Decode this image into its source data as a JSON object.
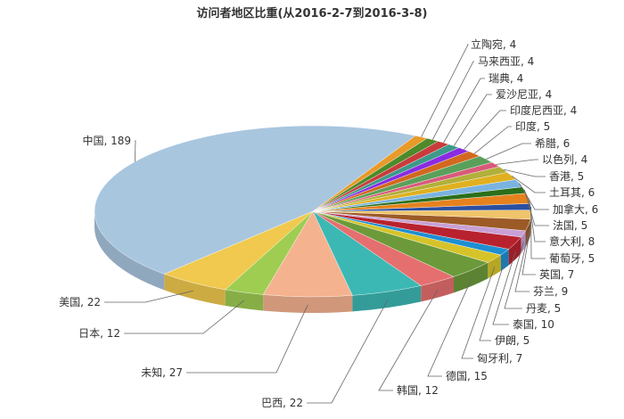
{
  "chart_data": {
    "type": "pie",
    "title": "访问者地区比重(从2016-2-7到2016-3-8)",
    "slices": [
      {
        "label": "中国",
        "value": 189,
        "color": "#a9c6df"
      },
      {
        "label": "美国",
        "value": 22,
        "color": "#f0c94e"
      },
      {
        "label": "日本",
        "value": 12,
        "color": "#9fcd52"
      },
      {
        "label": "未知",
        "value": 27,
        "color": "#f5b28f"
      },
      {
        "label": "巴西",
        "value": 22,
        "color": "#3cb8b4"
      },
      {
        "label": "韩国",
        "value": 12,
        "color": "#e56f6f"
      },
      {
        "label": "德国",
        "value": 15,
        "color": "#6c9a3a"
      },
      {
        "label": "匈牙利",
        "value": 7,
        "color": "#d6c32a"
      },
      {
        "label": "伊朗",
        "value": 5,
        "color": "#1e8fd2"
      },
      {
        "label": "泰国",
        "value": 10,
        "color": "#b8222f"
      },
      {
        "label": "丹麦",
        "value": 5,
        "color": "#c9a0d6"
      },
      {
        "label": "芬兰",
        "value": 9,
        "color": "#9c5a27"
      },
      {
        "label": "英国",
        "value": 7,
        "color": "#f0c46a"
      },
      {
        "label": "葡萄牙",
        "value": 5,
        "color": "#2a4fa0"
      },
      {
        "label": "意大利",
        "value": 8,
        "color": "#e6821e"
      },
      {
        "label": "法国",
        "value": 5,
        "color": "#2b6f1a"
      },
      {
        "label": "加拿大",
        "value": 6,
        "color": "#7ab3e0"
      },
      {
        "label": "土耳其",
        "value": 6,
        "color": "#e0b020"
      },
      {
        "label": "香港",
        "value": 5,
        "color": "#b0b03a"
      },
      {
        "label": "以色列",
        "value": 4,
        "color": "#d95a7a"
      },
      {
        "label": "希腊",
        "value": 6,
        "color": "#5aa05a"
      },
      {
        "label": "印度",
        "value": 5,
        "color": "#d2691e"
      },
      {
        "label": "印度尼西亚",
        "value": 4,
        "color": "#8a2be2"
      },
      {
        "label": "爱沙尼亚",
        "value": 4,
        "color": "#3c9a8a"
      },
      {
        "label": "瑞典",
        "value": 4,
        "color": "#c83c3c"
      },
      {
        "label": "马来西亚",
        "value": 4,
        "color": "#4c8a2a"
      },
      {
        "label": "立陶宛",
        "value": 4,
        "color": "#e89a2a"
      }
    ]
  }
}
